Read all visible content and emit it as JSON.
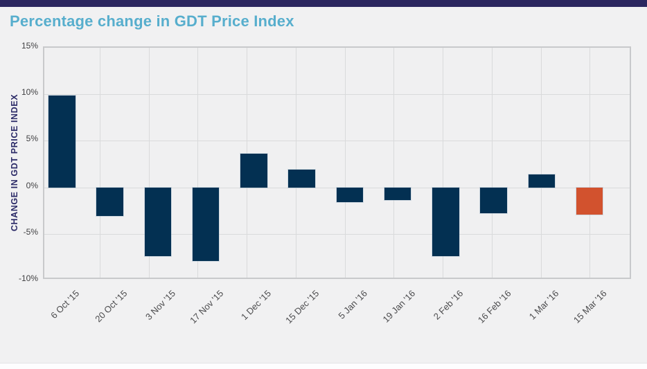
{
  "page": {
    "title": "Percentage change in GDT Price Index"
  },
  "chart_data": {
    "type": "bar",
    "title": "Percentage change in GDT Price Index",
    "xlabel": "",
    "ylabel": "CHANGE IN GDT PRICE INDEX",
    "ylim": [
      -10,
      15
    ],
    "ytick_step": 5,
    "ytick_labels": [
      "15%",
      "10%",
      "5%",
      "0%",
      "-5%",
      "-10%"
    ],
    "categories": [
      "6 Oct '15",
      "20 Oct '15",
      "3 Nov '15",
      "17 Nov '15",
      "1 Dec '15",
      "15 Dec '15",
      "5 Jan '16",
      "19 Jan '16",
      "2 Feb '16",
      "16 Feb '16",
      "1 Mar '16",
      "15 Mar '16"
    ],
    "values": [
      9.9,
      -3.1,
      -7.4,
      -7.9,
      3.6,
      1.9,
      -1.6,
      -1.4,
      -7.4,
      -2.8,
      1.4,
      -2.9
    ],
    "grid": true,
    "legend": false,
    "highlight_index": 11
  },
  "colors": {
    "accent_top_bar": "#2b265f",
    "title_text": "#57aecd",
    "bar_default": "#033052",
    "bar_highlight": "#d2522e",
    "axis_title_text": "#2b2a67",
    "tick_text": "#3f3f41",
    "plot_background": "#f0f0f1",
    "gridline": "#d9dadb"
  }
}
